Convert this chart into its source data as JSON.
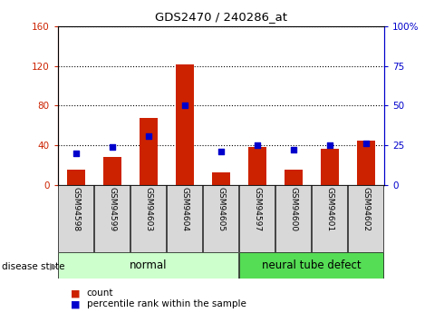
{
  "title": "GDS2470 / 240286_at",
  "samples": [
    "GSM94598",
    "GSM94599",
    "GSM94603",
    "GSM94604",
    "GSM94605",
    "GSM94597",
    "GSM94600",
    "GSM94601",
    "GSM94602"
  ],
  "counts": [
    15,
    28,
    68,
    122,
    12,
    38,
    15,
    36,
    45
  ],
  "percentiles": [
    20,
    24,
    31,
    50,
    21,
    25,
    22,
    25,
    26
  ],
  "left_ylim": [
    0,
    160
  ],
  "right_ylim": [
    0,
    100
  ],
  "left_yticks": [
    0,
    40,
    80,
    120,
    160
  ],
  "right_yticks": [
    0,
    25,
    50,
    75,
    100
  ],
  "right_yticklabels": [
    "0",
    "25",
    "50",
    "75",
    "100%"
  ],
  "bar_color": "#cc2200",
  "square_color": "#0000cc",
  "normal_indices": [
    0,
    1,
    2,
    3,
    4
  ],
  "defect_indices": [
    5,
    6,
    7,
    8
  ],
  "normal_label": "normal",
  "defect_label": "neural tube defect",
  "normal_bg": "#ccffcc",
  "defect_bg": "#55dd55",
  "disease_state_label": "disease state",
  "legend_count": "count",
  "legend_pct": "percentile rank within the sample",
  "grid_color": "black",
  "tick_label_bg": "#d8d8d8",
  "left_axis_color": "#cc2200",
  "right_axis_color": "#0000cc",
  "fig_bg": "#ffffff"
}
